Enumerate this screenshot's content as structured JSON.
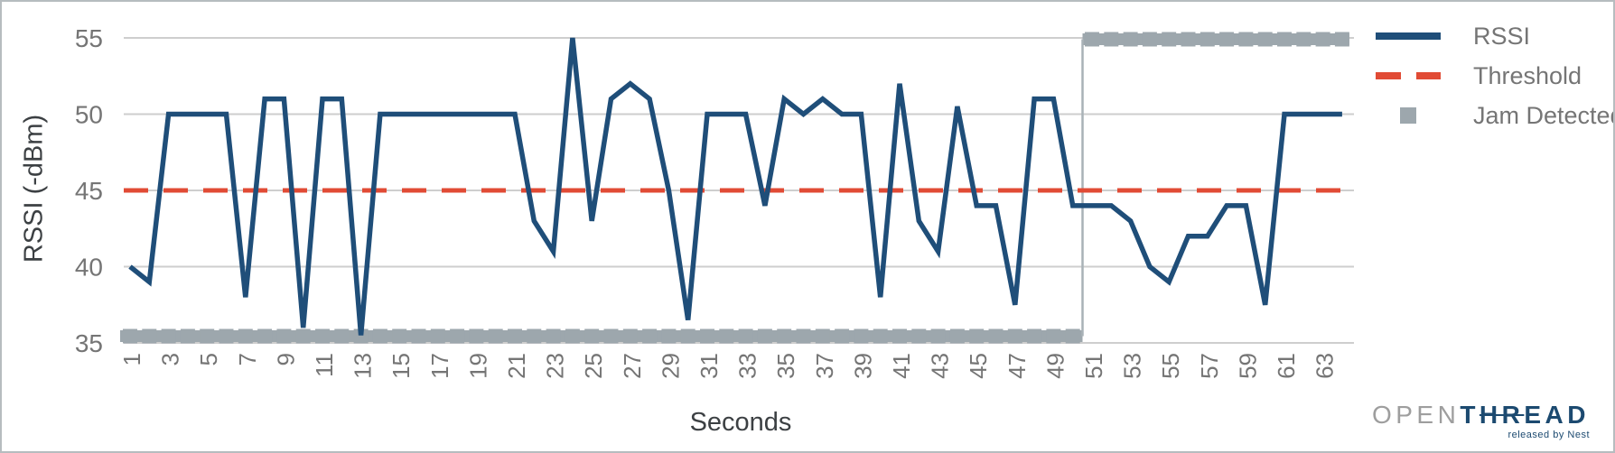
{
  "chart_data": {
    "type": "line",
    "title": "",
    "xlabel": "Seconds",
    "ylabel": "RSSI (-dBm)",
    "ylim": [
      35,
      55
    ],
    "yticks": [
      35,
      40,
      45,
      50,
      55
    ],
    "xticks": [
      1,
      3,
      5,
      7,
      9,
      11,
      13,
      15,
      17,
      19,
      21,
      23,
      25,
      27,
      29,
      31,
      33,
      35,
      37,
      39,
      41,
      43,
      45,
      47,
      49,
      51,
      53,
      55,
      57,
      59,
      61,
      63
    ],
    "x": [
      1,
      2,
      3,
      4,
      5,
      6,
      7,
      8,
      9,
      10,
      11,
      12,
      13,
      14,
      15,
      16,
      17,
      18,
      19,
      20,
      21,
      22,
      23,
      24,
      25,
      26,
      27,
      28,
      29,
      30,
      31,
      32,
      33,
      34,
      35,
      36,
      37,
      38,
      39,
      40,
      41,
      42,
      43,
      44,
      45,
      46,
      47,
      48,
      49,
      50,
      51,
      52,
      53,
      54,
      55,
      56,
      57,
      58,
      59,
      60,
      61,
      62,
      63,
      64
    ],
    "grid": "horizontal",
    "legend_position": "top-right",
    "series": [
      {
        "name": "RSSI",
        "style": "solid",
        "color": "#1f4e79",
        "values": [
          40,
          39,
          50,
          50,
          50,
          50,
          38,
          51,
          51,
          36,
          51,
          51,
          35.5,
          50,
          50,
          50,
          50,
          50,
          50,
          50,
          50,
          43,
          41,
          55,
          43,
          51,
          52,
          51,
          45,
          36.5,
          50,
          50,
          50,
          44,
          51,
          50,
          51,
          50,
          50,
          38,
          52,
          43,
          41,
          50.5,
          44,
          44,
          37.5,
          51,
          51,
          44,
          44,
          44,
          43,
          40,
          39,
          42,
          42,
          44,
          44,
          37.5,
          50,
          50,
          50,
          50
        ]
      },
      {
        "name": "Threshold",
        "style": "dashed",
        "color": "#e14b35",
        "value": 45
      },
      {
        "name": "Jam Detected",
        "style": "step-markers",
        "color": "#9da7ad",
        "values": [
          35,
          35,
          35,
          35,
          35,
          35,
          35,
          35,
          35,
          35,
          35,
          35,
          35,
          35,
          35,
          35,
          35,
          35,
          35,
          35,
          35,
          35,
          35,
          35,
          35,
          35,
          35,
          35,
          35,
          35,
          35,
          35,
          35,
          35,
          35,
          35,
          35,
          35,
          35,
          35,
          35,
          35,
          35,
          35,
          35,
          35,
          35,
          35,
          35,
          35,
          55,
          55,
          55,
          55,
          55,
          55,
          55,
          55,
          55,
          55,
          55,
          55,
          55,
          55
        ]
      }
    ]
  },
  "branding": {
    "logo_open": "OPEN",
    "logo_t": "T",
    "logo_hr": "HR",
    "logo_ead": "EAD",
    "logo_sub": "released by Nest"
  }
}
